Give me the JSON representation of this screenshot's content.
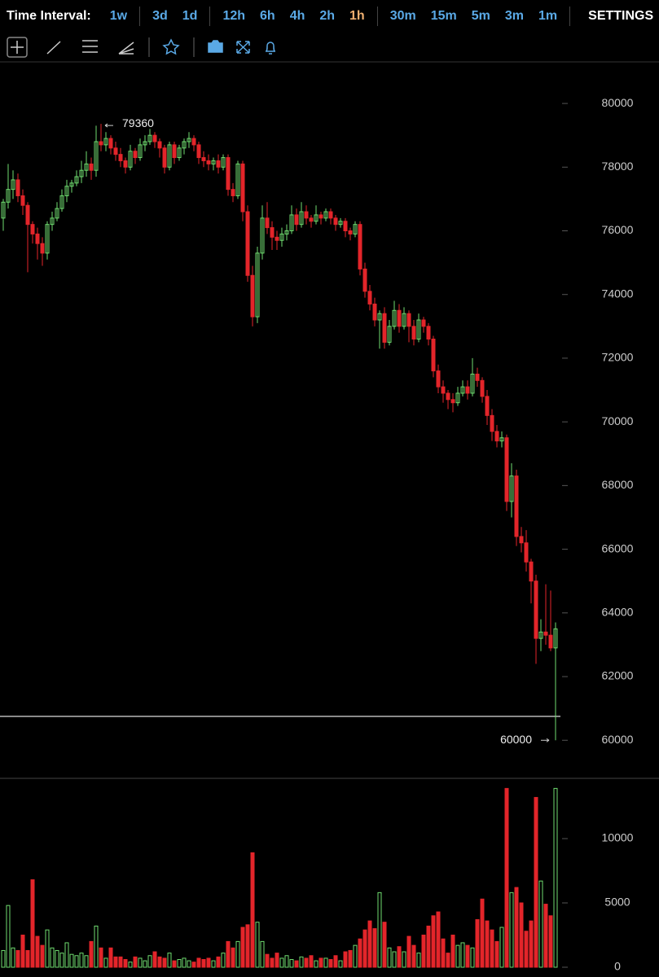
{
  "toolbar": {
    "label": "Time Interval:",
    "intervals": [
      [
        "1w"
      ],
      [
        "3d",
        "1d"
      ],
      [
        "12h",
        "6h",
        "4h",
        "2h",
        "1h"
      ],
      [
        "30m",
        "15m",
        "5m",
        "3m",
        "1m"
      ]
    ],
    "active": "2.4",
    "settings": "SETTINGS"
  },
  "chart_data": {
    "type": "candlestick",
    "up_color": "#6fdc6f",
    "down_color": "#e3252a",
    "candles": [
      [
        76400,
        77000,
        76000,
        76900
      ],
      [
        76900,
        78100,
        76700,
        77300
      ],
      [
        77300,
        77900,
        77000,
        77600
      ],
      [
        77600,
        77800,
        76900,
        77100
      ],
      [
        77100,
        77300,
        76500,
        76800
      ],
      [
        76800,
        76900,
        74700,
        76200
      ],
      [
        76200,
        76300,
        75600,
        75900
      ],
      [
        75900,
        76100,
        75100,
        75600
      ],
      [
        75600,
        75800,
        74900,
        75300
      ],
      [
        75300,
        76300,
        75100,
        76200
      ],
      [
        76200,
        76600,
        76000,
        76400
      ],
      [
        76400,
        76900,
        76300,
        76700
      ],
      [
        76700,
        77300,
        76600,
        77100
      ],
      [
        77100,
        77600,
        76900,
        77400
      ],
      [
        77400,
        77600,
        77200,
        77500
      ],
      [
        77500,
        77900,
        77400,
        77700
      ],
      [
        77700,
        78200,
        77500,
        77900
      ],
      [
        77900,
        78500,
        77700,
        78100
      ],
      [
        78100,
        78300,
        77600,
        77900
      ],
      [
        77900,
        79300,
        77700,
        78800
      ],
      [
        78800,
        79360,
        78500,
        78700
      ],
      [
        78700,
        79100,
        78500,
        78900
      ],
      [
        78900,
        79000,
        78400,
        78600
      ],
      [
        78600,
        78800,
        78200,
        78400
      ],
      [
        78400,
        78600,
        78000,
        78200
      ],
      [
        78200,
        78300,
        77800,
        78000
      ],
      [
        78000,
        78700,
        77900,
        78500
      ],
      [
        78500,
        78600,
        78100,
        78300
      ],
      [
        78300,
        78900,
        78200,
        78700
      ],
      [
        78700,
        79000,
        78500,
        78800
      ],
      [
        78800,
        79200,
        78700,
        79000
      ],
      [
        79000,
        79100,
        78600,
        78800
      ],
      [
        78800,
        78900,
        78300,
        78600
      ],
      [
        78600,
        78700,
        77800,
        78000
      ],
      [
        78000,
        78800,
        77900,
        78700
      ],
      [
        78700,
        78800,
        78100,
        78300
      ],
      [
        78300,
        78700,
        78200,
        78600
      ],
      [
        78600,
        78900,
        78400,
        78800
      ],
      [
        78800,
        79100,
        78600,
        78900
      ],
      [
        78900,
        79000,
        78500,
        78700
      ],
      [
        78700,
        78800,
        78100,
        78300
      ],
      [
        78300,
        78500,
        78000,
        78200
      ],
      [
        78200,
        78400,
        77900,
        78100
      ],
      [
        78100,
        78300,
        77900,
        78200
      ],
      [
        78200,
        78400,
        77800,
        78000
      ],
      [
        78000,
        78400,
        77900,
        78300
      ],
      [
        78300,
        78400,
        77100,
        77300
      ],
      [
        77300,
        77500,
        76900,
        77100
      ],
      [
        77100,
        78200,
        77000,
        78100
      ],
      [
        78100,
        78200,
        76300,
        76600
      ],
      [
        76600,
        76800,
        74400,
        74600
      ],
      [
        74600,
        74900,
        73000,
        73300
      ],
      [
        73300,
        75500,
        73100,
        75300
      ],
      [
        75300,
        76800,
        75100,
        76400
      ],
      [
        76400,
        76900,
        75900,
        76100
      ],
      [
        76100,
        76300,
        75400,
        75800
      ],
      [
        75800,
        76000,
        75400,
        75700
      ],
      [
        75700,
        76100,
        75500,
        75900
      ],
      [
        75900,
        76200,
        75700,
        76000
      ],
      [
        76000,
        76800,
        75900,
        76500
      ],
      [
        76500,
        76700,
        76000,
        76200
      ],
      [
        76200,
        76900,
        76100,
        76600
      ],
      [
        76600,
        76800,
        76200,
        76400
      ],
      [
        76400,
        76500,
        76100,
        76300
      ],
      [
        76300,
        76800,
        76200,
        76500
      ],
      [
        76500,
        76600,
        76200,
        76400
      ],
      [
        76400,
        76700,
        76300,
        76600
      ],
      [
        76600,
        76700,
        76200,
        76400
      ],
      [
        76400,
        76500,
        76000,
        76200
      ],
      [
        76200,
        76400,
        76100,
        76300
      ],
      [
        76300,
        76400,
        75800,
        76000
      ],
      [
        76000,
        76100,
        75700,
        75900
      ],
      [
        75900,
        76300,
        75800,
        76200
      ],
      [
        76200,
        76300,
        74600,
        74800
      ],
      [
        74800,
        75000,
        73900,
        74100
      ],
      [
        74100,
        74300,
        73500,
        73700
      ],
      [
        73700,
        73900,
        73000,
        73200
      ],
      [
        73200,
        73500,
        72300,
        73400
      ],
      [
        73400,
        73600,
        72300,
        72500
      ],
      [
        72500,
        73200,
        72400,
        73000
      ],
      [
        73000,
        73800,
        72900,
        73500
      ],
      [
        73500,
        73700,
        72800,
        73000
      ],
      [
        73000,
        73600,
        72900,
        73400
      ],
      [
        73400,
        73500,
        72500,
        73000
      ],
      [
        73000,
        73200,
        72400,
        72600
      ],
      [
        72600,
        73400,
        72500,
        73200
      ],
      [
        73200,
        73300,
        72800,
        73000
      ],
      [
        73000,
        73100,
        72400,
        72600
      ],
      [
        72600,
        72700,
        71400,
        71600
      ],
      [
        71600,
        71800,
        70900,
        71100
      ],
      [
        71100,
        71300,
        70600,
        70900
      ],
      [
        70900,
        71000,
        70400,
        70700
      ],
      [
        70700,
        70900,
        70300,
        70600
      ],
      [
        70600,
        71100,
        70500,
        70900
      ],
      [
        70900,
        71300,
        70800,
        71100
      ],
      [
        71100,
        71300,
        70700,
        70900
      ],
      [
        70900,
        72000,
        70800,
        71500
      ],
      [
        71500,
        71700,
        71100,
        71300
      ],
      [
        71300,
        71400,
        70600,
        70800
      ],
      [
        70800,
        71000,
        69900,
        70200
      ],
      [
        70200,
        70400,
        69400,
        69700
      ],
      [
        69700,
        69900,
        69200,
        69400
      ],
      [
        69400,
        69700,
        69200,
        69500
      ],
      [
        69500,
        69600,
        67200,
        67500
      ],
      [
        67500,
        68700,
        67000,
        68300
      ],
      [
        68300,
        68500,
        66100,
        66400
      ],
      [
        66400,
        66700,
        65900,
        66200
      ],
      [
        66200,
        66600,
        65300,
        65600
      ],
      [
        65600,
        65700,
        64300,
        65000
      ],
      [
        65000,
        65200,
        62400,
        63200
      ],
      [
        63200,
        63800,
        62800,
        63400
      ],
      [
        63400,
        64900,
        63000,
        63300
      ],
      [
        63300,
        64700,
        62800,
        62900
      ],
      [
        62900,
        63700,
        60000,
        63500
      ]
    ],
    "volume": [
      1300,
      4800,
      1500,
      1300,
      2500,
      1300,
      6800,
      2400,
      1700,
      2900,
      1500,
      1300,
      1100,
      1900,
      1000,
      900,
      1100,
      900,
      2000,
      3200,
      1500,
      700,
      1500,
      800,
      800,
      600,
      400,
      800,
      700,
      500,
      900,
      1200,
      800,
      700,
      1100,
      500,
      600,
      700,
      500,
      400,
      700,
      600,
      700,
      500,
      800,
      1100,
      2000,
      1500,
      2000,
      3100,
      3300,
      8900,
      3500,
      2000,
      1000,
      700,
      1100,
      700,
      900,
      600,
      500,
      800,
      700,
      900,
      500,
      700,
      700,
      600,
      900,
      500,
      1200,
      1300,
      1700,
      2200,
      2900,
      3600,
      3000,
      5800,
      3500,
      1500,
      1200,
      1600,
      1200,
      2400,
      1700,
      1100,
      2500,
      3200,
      4000,
      4300,
      2200,
      1100,
      2500,
      1700,
      1900,
      1700,
      1500,
      3700,
      5300,
      3600,
      2900,
      2000,
      3100,
      13900,
      5800,
      6200,
      5000,
      2800,
      3600,
      13200,
      6700,
      4900,
      4000,
      13900
    ],
    "ylim": [
      58830,
      81280
    ],
    "yticks": [
      60000,
      62000,
      64000,
      66000,
      68000,
      70000,
      72000,
      74000,
      76000,
      78000,
      80000
    ],
    "volume_ylim": [
      -760,
      14620
    ],
    "volume_yticks": [
      0,
      5000,
      10000
    ],
    "max_label": 79360,
    "min_label": 60000,
    "level_line": 60750
  }
}
